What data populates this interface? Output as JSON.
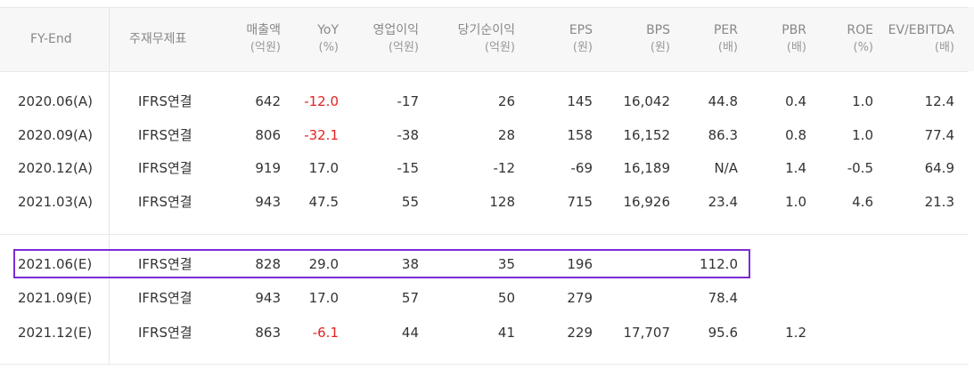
{
  "columns": [
    {
      "label": "FY-End",
      "unit": ""
    },
    {
      "label": "주재무제표",
      "unit": ""
    },
    {
      "label": "매출액",
      "unit": "(억원)"
    },
    {
      "label": "YoY",
      "unit": "(%)"
    },
    {
      "label": "영업이익",
      "unit": "(억원)"
    },
    {
      "label": "당기순이익",
      "unit": "(억원)"
    },
    {
      "label": "EPS",
      "unit": "(원)"
    },
    {
      "label": "BPS",
      "unit": "(원)"
    },
    {
      "label": "PER",
      "unit": "(배)"
    },
    {
      "label": "PBR",
      "unit": "(배)"
    },
    {
      "label": "ROE",
      "unit": "(%)"
    },
    {
      "label": "EV/EBITDA",
      "unit": "(배)"
    }
  ],
  "actual_rows": [
    [
      "2020.06(A)",
      "IFRS연결",
      "642",
      "-12.0",
      "-17",
      "26",
      "145",
      "16,042",
      "44.8",
      "0.4",
      "1.0",
      "12.4"
    ],
    [
      "2020.09(A)",
      "IFRS연결",
      "806",
      "-32.1",
      "-38",
      "28",
      "158",
      "16,152",
      "86.3",
      "0.8",
      "1.0",
      "77.4"
    ],
    [
      "2020.12(A)",
      "IFRS연결",
      "919",
      "17.0",
      "-15",
      "-12",
      "-69",
      "16,189",
      "N/A",
      "1.4",
      "-0.5",
      "64.9"
    ],
    [
      "2021.03(A)",
      "IFRS연결",
      "943",
      "47.5",
      "55",
      "128",
      "715",
      "16,926",
      "23.4",
      "1.0",
      "4.6",
      "21.3"
    ]
  ],
  "estimate_rows": [
    [
      "2021.06(E)",
      "IFRS연결",
      "828",
      "29.0",
      "38",
      "35",
      "196",
      "",
      "112.0",
      "",
      "",
      ""
    ],
    [
      "2021.09(E)",
      "IFRS연결",
      "943",
      "17.0",
      "57",
      "50",
      "279",
      "",
      "78.4",
      "",
      "",
      ""
    ],
    [
      "2021.12(E)",
      "IFRS연결",
      "863",
      "-6.1",
      "44",
      "41",
      "229",
      "17,707",
      "95.6",
      "1.2",
      "",
      ""
    ]
  ],
  "negative_yoy_color": "#e22222",
  "highlight_color": "#7a2bd6",
  "highlighted_row": "2021.06(E)"
}
